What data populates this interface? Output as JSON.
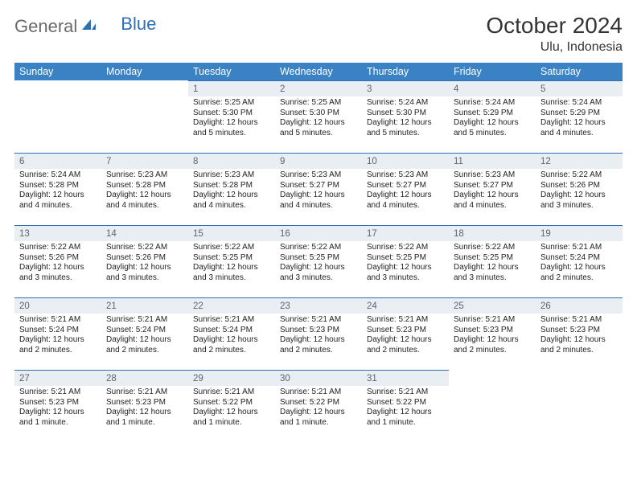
{
  "logo": {
    "general": "General",
    "blue": "Blue"
  },
  "title": "October 2024",
  "location": "Ulu, Indonesia",
  "weekdays": [
    "Sunday",
    "Monday",
    "Tuesday",
    "Wednesday",
    "Thursday",
    "Friday",
    "Saturday"
  ],
  "colors": {
    "header_bg": "#3b82c4",
    "header_text": "#ffffff",
    "daynum_bg": "#e9eef2",
    "daynum_border": "#2d70b6",
    "daynum_text": "#5a6570",
    "body_text": "#222222",
    "logo_gray": "#6a6a6a",
    "logo_blue": "#2d70b6"
  },
  "rows": [
    [
      {
        "empty": true
      },
      {
        "empty": true
      },
      {
        "n": "1",
        "sr": "Sunrise: 5:25 AM",
        "ss": "Sunset: 5:30 PM",
        "dl": "Daylight: 12 hours and 5 minutes."
      },
      {
        "n": "2",
        "sr": "Sunrise: 5:25 AM",
        "ss": "Sunset: 5:30 PM",
        "dl": "Daylight: 12 hours and 5 minutes."
      },
      {
        "n": "3",
        "sr": "Sunrise: 5:24 AM",
        "ss": "Sunset: 5:30 PM",
        "dl": "Daylight: 12 hours and 5 minutes."
      },
      {
        "n": "4",
        "sr": "Sunrise: 5:24 AM",
        "ss": "Sunset: 5:29 PM",
        "dl": "Daylight: 12 hours and 5 minutes."
      },
      {
        "n": "5",
        "sr": "Sunrise: 5:24 AM",
        "ss": "Sunset: 5:29 PM",
        "dl": "Daylight: 12 hours and 4 minutes."
      }
    ],
    [
      {
        "n": "6",
        "sr": "Sunrise: 5:24 AM",
        "ss": "Sunset: 5:28 PM",
        "dl": "Daylight: 12 hours and 4 minutes."
      },
      {
        "n": "7",
        "sr": "Sunrise: 5:23 AM",
        "ss": "Sunset: 5:28 PM",
        "dl": "Daylight: 12 hours and 4 minutes."
      },
      {
        "n": "8",
        "sr": "Sunrise: 5:23 AM",
        "ss": "Sunset: 5:28 PM",
        "dl": "Daylight: 12 hours and 4 minutes."
      },
      {
        "n": "9",
        "sr": "Sunrise: 5:23 AM",
        "ss": "Sunset: 5:27 PM",
        "dl": "Daylight: 12 hours and 4 minutes."
      },
      {
        "n": "10",
        "sr": "Sunrise: 5:23 AM",
        "ss": "Sunset: 5:27 PM",
        "dl": "Daylight: 12 hours and 4 minutes."
      },
      {
        "n": "11",
        "sr": "Sunrise: 5:23 AM",
        "ss": "Sunset: 5:27 PM",
        "dl": "Daylight: 12 hours and 4 minutes."
      },
      {
        "n": "12",
        "sr": "Sunrise: 5:22 AM",
        "ss": "Sunset: 5:26 PM",
        "dl": "Daylight: 12 hours and 3 minutes."
      }
    ],
    [
      {
        "n": "13",
        "sr": "Sunrise: 5:22 AM",
        "ss": "Sunset: 5:26 PM",
        "dl": "Daylight: 12 hours and 3 minutes."
      },
      {
        "n": "14",
        "sr": "Sunrise: 5:22 AM",
        "ss": "Sunset: 5:26 PM",
        "dl": "Daylight: 12 hours and 3 minutes."
      },
      {
        "n": "15",
        "sr": "Sunrise: 5:22 AM",
        "ss": "Sunset: 5:25 PM",
        "dl": "Daylight: 12 hours and 3 minutes."
      },
      {
        "n": "16",
        "sr": "Sunrise: 5:22 AM",
        "ss": "Sunset: 5:25 PM",
        "dl": "Daylight: 12 hours and 3 minutes."
      },
      {
        "n": "17",
        "sr": "Sunrise: 5:22 AM",
        "ss": "Sunset: 5:25 PM",
        "dl": "Daylight: 12 hours and 3 minutes."
      },
      {
        "n": "18",
        "sr": "Sunrise: 5:22 AM",
        "ss": "Sunset: 5:25 PM",
        "dl": "Daylight: 12 hours and 3 minutes."
      },
      {
        "n": "19",
        "sr": "Sunrise: 5:21 AM",
        "ss": "Sunset: 5:24 PM",
        "dl": "Daylight: 12 hours and 2 minutes."
      }
    ],
    [
      {
        "n": "20",
        "sr": "Sunrise: 5:21 AM",
        "ss": "Sunset: 5:24 PM",
        "dl": "Daylight: 12 hours and 2 minutes."
      },
      {
        "n": "21",
        "sr": "Sunrise: 5:21 AM",
        "ss": "Sunset: 5:24 PM",
        "dl": "Daylight: 12 hours and 2 minutes."
      },
      {
        "n": "22",
        "sr": "Sunrise: 5:21 AM",
        "ss": "Sunset: 5:24 PM",
        "dl": "Daylight: 12 hours and 2 minutes."
      },
      {
        "n": "23",
        "sr": "Sunrise: 5:21 AM",
        "ss": "Sunset: 5:23 PM",
        "dl": "Daylight: 12 hours and 2 minutes."
      },
      {
        "n": "24",
        "sr": "Sunrise: 5:21 AM",
        "ss": "Sunset: 5:23 PM",
        "dl": "Daylight: 12 hours and 2 minutes."
      },
      {
        "n": "25",
        "sr": "Sunrise: 5:21 AM",
        "ss": "Sunset: 5:23 PM",
        "dl": "Daylight: 12 hours and 2 minutes."
      },
      {
        "n": "26",
        "sr": "Sunrise: 5:21 AM",
        "ss": "Sunset: 5:23 PM",
        "dl": "Daylight: 12 hours and 2 minutes."
      }
    ],
    [
      {
        "n": "27",
        "sr": "Sunrise: 5:21 AM",
        "ss": "Sunset: 5:23 PM",
        "dl": "Daylight: 12 hours and 1 minute."
      },
      {
        "n": "28",
        "sr": "Sunrise: 5:21 AM",
        "ss": "Sunset: 5:23 PM",
        "dl": "Daylight: 12 hours and 1 minute."
      },
      {
        "n": "29",
        "sr": "Sunrise: 5:21 AM",
        "ss": "Sunset: 5:22 PM",
        "dl": "Daylight: 12 hours and 1 minute."
      },
      {
        "n": "30",
        "sr": "Sunrise: 5:21 AM",
        "ss": "Sunset: 5:22 PM",
        "dl": "Daylight: 12 hours and 1 minute."
      },
      {
        "n": "31",
        "sr": "Sunrise: 5:21 AM",
        "ss": "Sunset: 5:22 PM",
        "dl": "Daylight: 12 hours and 1 minute."
      },
      {
        "empty": true
      },
      {
        "empty": true
      }
    ]
  ]
}
